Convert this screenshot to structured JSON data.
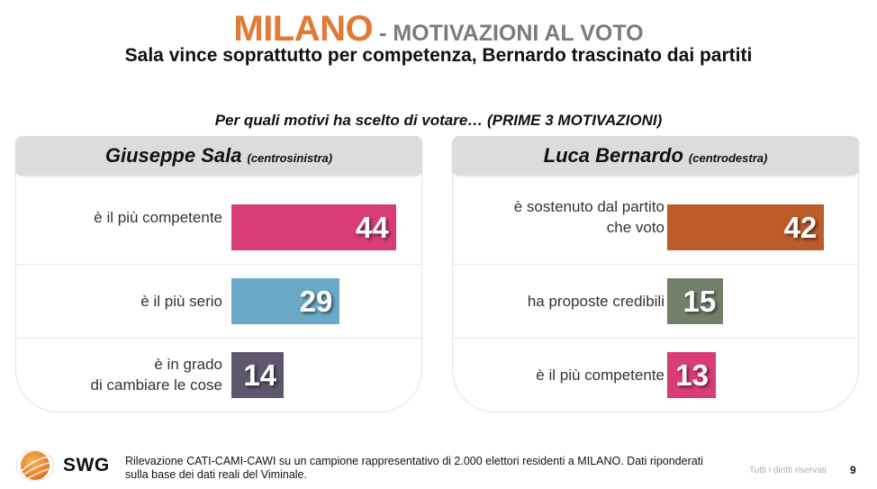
{
  "header": {
    "title_city": "MILANO",
    "title_rest": " - MOTIVAZIONI AL VOTO",
    "subtitle": "Sala vince soprattutto per competenza, Bernardo trascinato dai partiti",
    "question": "Per quali motivi ha scelto di votare… (PRIME 3 MOTIVAZIONI)"
  },
  "colors": {
    "title_accent": "#e07a35",
    "title_grey": "#7b7b7b",
    "pink": "#d83d77",
    "light_blue": "#6aaac8",
    "dark_purple": "#5e566c",
    "orange_brown": "#bc5c2b",
    "sage_green": "#727f6a"
  },
  "chart_data": [
    {
      "type": "bar",
      "orientation": "horizontal",
      "title": "Giuseppe Sala",
      "subtitle": "(centrosinistra)",
      "categories": [
        "è il più competente",
        "è  il più serio",
        "è in grado\ndi cambiare le cose"
      ],
      "values": [
        44,
        29,
        14
      ],
      "bar_colors": [
        "#d83d77",
        "#6aaac8",
        "#5e566c"
      ],
      "unit": "%",
      "xlim": [
        0,
        100
      ],
      "grid": false,
      "axis_visible": false
    },
    {
      "type": "bar",
      "orientation": "horizontal",
      "title": "Luca Bernardo",
      "subtitle": "(centrodestra)",
      "categories": [
        "è sostenuto dal partito\nche voto",
        "ha proposte credibili",
        "è il più competente"
      ],
      "values": [
        42,
        15,
        13
      ],
      "bar_colors": [
        "#bc5c2b",
        "#727f6a",
        "#d83d77"
      ],
      "unit": "%",
      "xlim": [
        0,
        100
      ],
      "grid": false,
      "axis_visible": false
    }
  ],
  "footer": {
    "logo_text": "SWG",
    "logo_icon": "orange-globe-icon",
    "note": "Rilevazione CATI-CAMI-CAWI su un campione rappresentativo di 2.000 elettori residenti a MILANO. Dati riponderati sulla base dei dati reali del Viminale.",
    "rights": "Tutti i diritti riservati",
    "page_number": "9"
  }
}
